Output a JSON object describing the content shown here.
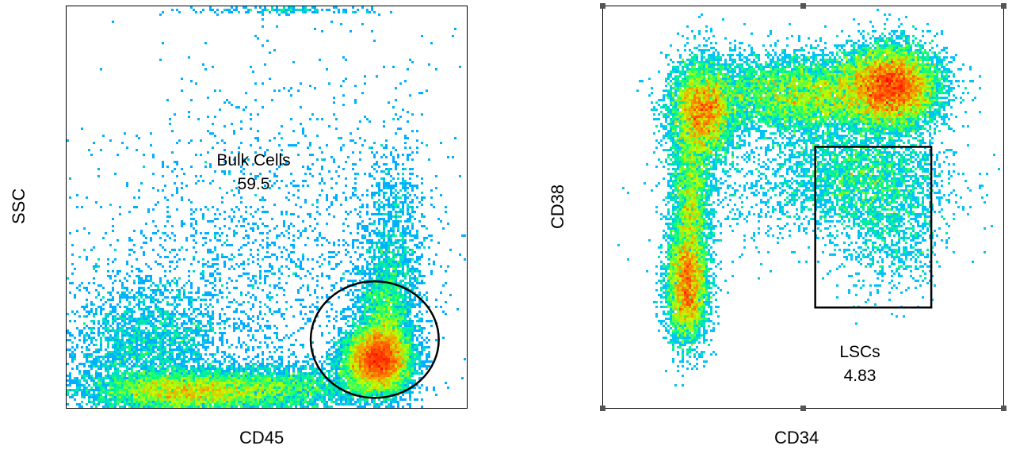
{
  "chart_data": [
    {
      "type": "scatter",
      "xlabel": "CD45",
      "ylabel": "SSC",
      "grid": false,
      "colormap": [
        "#0000ff",
        "#00c0ff",
        "#00ff80",
        "#c0ff00",
        "#ff8000",
        "#ff0000"
      ],
      "populations": [
        {
          "name_text": "",
          "x_center": 0.78,
          "y_center": 0.12,
          "density": "highest"
        },
        {
          "name_text": "",
          "x_center": 0.3,
          "y_center": 0.05,
          "density": "high"
        },
        {
          "name_text": "",
          "x_center": 0.25,
          "y_center": 0.25,
          "density": "low"
        }
      ],
      "gate": {
        "shape": "ellipse",
        "name": "Bulk Cells",
        "value": "59.5"
      }
    },
    {
      "type": "scatter",
      "xlabel": "CD34",
      "ylabel": "CD38",
      "grid": false,
      "colormap": [
        "#0000ff",
        "#00c0ff",
        "#00ff80",
        "#c0ff00",
        "#ff8000",
        "#ff0000"
      ],
      "populations": [
        {
          "x_center": 0.87,
          "y_center": 0.78,
          "density": "highest"
        },
        {
          "x_center": 0.27,
          "y_center": 0.73,
          "density": "high"
        },
        {
          "x_center": 0.22,
          "y_center": 0.3,
          "density": "high"
        },
        {
          "x_center": 0.55,
          "y_center": 0.68,
          "density": "medium"
        },
        {
          "x_center": 0.8,
          "y_center": 0.45,
          "density": "low"
        }
      ],
      "gate": {
        "shape": "rectangle",
        "name": "LSCs",
        "value": "4.83"
      }
    }
  ]
}
